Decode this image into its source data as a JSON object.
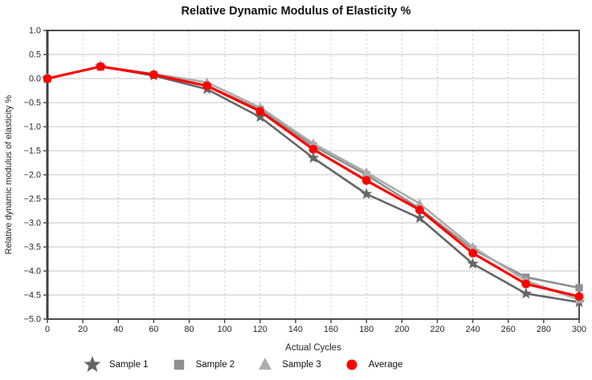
{
  "chart_data": {
    "type": "line",
    "title": "Relative Dynamic Modulus of Elasticity %",
    "xlabel": "Actual Cycles",
    "ylabel": "Relative dynamic modulus of elasticity %",
    "x": [
      0,
      30,
      60,
      90,
      120,
      150,
      180,
      210,
      240,
      270,
      300
    ],
    "series": [
      {
        "name": "Sample 1",
        "marker": "star",
        "color": "#666666",
        "line_width": 2.6,
        "values": [
          0.0,
          0.25,
          0.06,
          -0.22,
          -0.8,
          -1.65,
          -2.4,
          -2.9,
          -3.85,
          -4.47,
          -4.65
        ]
      },
      {
        "name": "Sample 2",
        "marker": "square",
        "color": "#8f8f8f",
        "line_width": 2.6,
        "values": [
          0.0,
          0.25,
          0.08,
          -0.15,
          -0.64,
          -1.4,
          -2.0,
          -2.7,
          -3.55,
          -4.13,
          -4.35
        ]
      },
      {
        "name": "Sample 3",
        "marker": "triangle",
        "color": "#adadad",
        "line_width": 2.6,
        "values": [
          0.0,
          0.25,
          0.1,
          -0.08,
          -0.6,
          -1.35,
          -1.95,
          -2.6,
          -3.5,
          -4.2,
          -4.6
        ]
      },
      {
        "name": "Average",
        "marker": "circle",
        "color": "#ff0000",
        "line_width": 3.2,
        "values": [
          0.0,
          0.25,
          0.08,
          -0.15,
          -0.68,
          -1.47,
          -2.12,
          -2.73,
          -3.63,
          -4.27,
          -4.53
        ]
      }
    ],
    "xlim": [
      0,
      300
    ],
    "ylim": [
      -5.0,
      1.0
    ],
    "xticks": [
      0,
      20,
      40,
      60,
      80,
      100,
      120,
      140,
      160,
      180,
      200,
      220,
      240,
      260,
      280,
      300
    ],
    "yticks": [
      1.0,
      0.5,
      0.0,
      -0.5,
      -1.0,
      -1.5,
      -2.0,
      -2.5,
      -3.0,
      -3.5,
      -4.0,
      -4.5,
      -5.0
    ],
    "grid": true,
    "legend_position": "bottom",
    "colors": {
      "grid": "#c6c6c6",
      "spine": "#4d4d4d",
      "tick_label": "#262626"
    }
  }
}
